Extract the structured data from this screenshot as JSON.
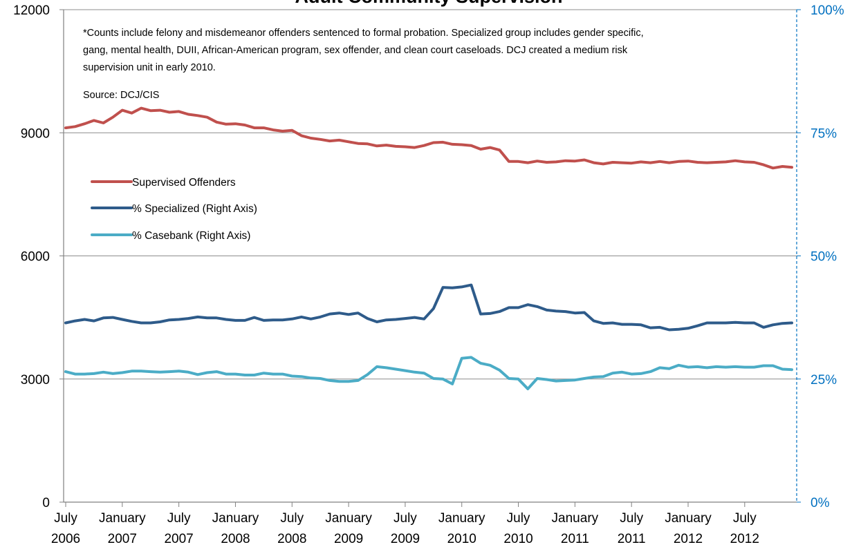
{
  "chart_data": {
    "type": "line",
    "title": "Adult Community Supervision",
    "notes": [
      "*Counts include felony and misdemeanor offenders sentenced to formal probation.  Specialized group includes gender specific,",
      "gang, mental health, DUII, African-American program, sex offender, and clean court caseloads.  DCJ created a medium risk",
      "supervision unit in early 2010."
    ],
    "source": "Source: DCJ/CIS",
    "y_left": {
      "ylim": [
        0,
        12000
      ],
      "ticks": [
        "0",
        "3000",
        "6000",
        "9000",
        "12000"
      ]
    },
    "y_right": {
      "ylim": [
        0,
        1
      ],
      "ticks": [
        "0%",
        "25%",
        "50%",
        "75%",
        "100%"
      ]
    },
    "x_ticks": [
      {
        "month": "July",
        "year": "2006"
      },
      {
        "month": "January",
        "year": "2007"
      },
      {
        "month": "July",
        "year": "2007"
      },
      {
        "month": "January",
        "year": "2008"
      },
      {
        "month": "July",
        "year": "2008"
      },
      {
        "month": "January",
        "year": "2009"
      },
      {
        "month": "July",
        "year": "2009"
      },
      {
        "month": "January",
        "year": "2010"
      },
      {
        "month": "July",
        "year": "2010"
      },
      {
        "month": "January",
        "year": "2011"
      },
      {
        "month": "July",
        "year": "2011"
      },
      {
        "month": "January",
        "year": "2012"
      },
      {
        "month": "July",
        "year": "2012"
      }
    ],
    "x_start": "2006-07",
    "x_end": "2012-12",
    "legend_position": "left",
    "series": [
      {
        "name": "Supervised Offenders",
        "axis": "left",
        "color": "#c0504d",
        "values": [
          9120,
          9150,
          9220,
          9300,
          9240,
          9380,
          9550,
          9480,
          9600,
          9540,
          9550,
          9500,
          9520,
          9450,
          9420,
          9380,
          9260,
          9210,
          9220,
          9190,
          9120,
          9120,
          9070,
          9040,
          9060,
          8930,
          8870,
          8840,
          8800,
          8820,
          8780,
          8740,
          8730,
          8680,
          8700,
          8670,
          8660,
          8640,
          8690,
          8760,
          8770,
          8720,
          8710,
          8690,
          8600,
          8640,
          8580,
          8300,
          8300,
          8270,
          8310,
          8280,
          8290,
          8320,
          8310,
          8340,
          8270,
          8240,
          8280,
          8270,
          8260,
          8290,
          8270,
          8300,
          8270,
          8300,
          8310,
          8280,
          8270,
          8280,
          8290,
          8320,
          8290,
          8280,
          8220,
          8140,
          8180,
          8160
        ]
      },
      {
        "name": "% Specialized (Right Axis)",
        "axis": "right",
        "color": "#2e5b8a",
        "values": [
          0.364,
          0.368,
          0.371,
          0.368,
          0.374,
          0.375,
          0.371,
          0.367,
          0.364,
          0.364,
          0.366,
          0.37,
          0.371,
          0.373,
          0.376,
          0.374,
          0.374,
          0.371,
          0.369,
          0.369,
          0.375,
          0.369,
          0.37,
          0.37,
          0.372,
          0.376,
          0.372,
          0.376,
          0.382,
          0.384,
          0.381,
          0.384,
          0.373,
          0.366,
          0.37,
          0.371,
          0.373,
          0.375,
          0.372,
          0.393,
          0.436,
          0.435,
          0.437,
          0.441,
          0.382,
          0.383,
          0.387,
          0.395,
          0.395,
          0.401,
          0.397,
          0.39,
          0.388,
          0.387,
          0.384,
          0.385,
          0.368,
          0.363,
          0.364,
          0.361,
          0.361,
          0.36,
          0.354,
          0.355,
          0.35,
          0.351,
          0.353,
          0.358,
          0.364,
          0.364,
          0.364,
          0.365,
          0.364,
          0.364,
          0.355,
          0.36,
          0.363,
          0.364
        ]
      },
      {
        "name": "% Casebank (Right Axis)",
        "axis": "right",
        "color": "#4bacc6",
        "values": [
          0.265,
          0.26,
          0.26,
          0.261,
          0.264,
          0.261,
          0.263,
          0.266,
          0.266,
          0.265,
          0.264,
          0.265,
          0.266,
          0.264,
          0.259,
          0.263,
          0.265,
          0.26,
          0.26,
          0.258,
          0.258,
          0.262,
          0.26,
          0.26,
          0.256,
          0.255,
          0.252,
          0.251,
          0.247,
          0.245,
          0.245,
          0.247,
          0.259,
          0.275,
          0.273,
          0.27,
          0.267,
          0.264,
          0.262,
          0.251,
          0.25,
          0.24,
          0.292,
          0.294,
          0.282,
          0.278,
          0.268,
          0.251,
          0.25,
          0.23,
          0.251,
          0.249,
          0.246,
          0.247,
          0.248,
          0.251,
          0.254,
          0.255,
          0.262,
          0.264,
          0.26,
          0.261,
          0.265,
          0.273,
          0.271,
          0.278,
          0.274,
          0.275,
          0.273,
          0.275,
          0.274,
          0.275,
          0.274,
          0.274,
          0.277,
          0.277,
          0.27,
          0.269
        ]
      }
    ]
  }
}
